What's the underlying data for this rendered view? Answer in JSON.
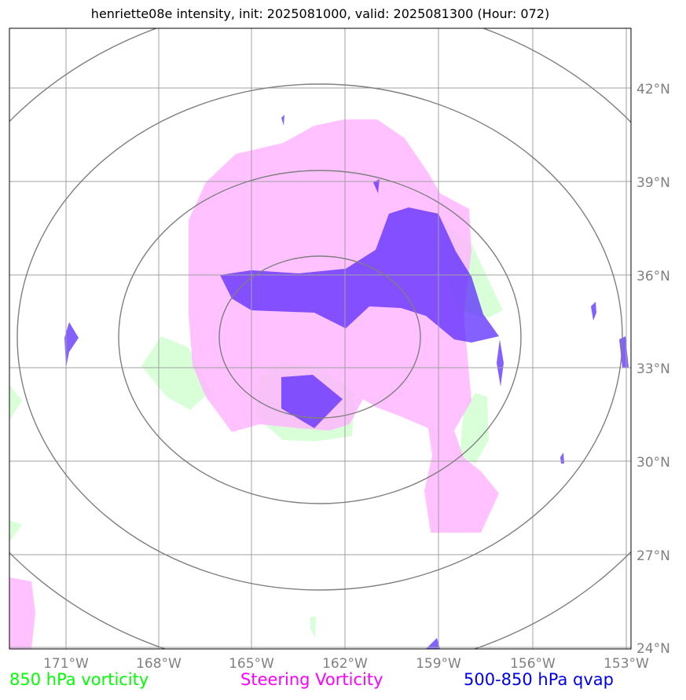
{
  "title": "henriette08e intensity, init: 2025081000, valid: 2025081300 (Hour: 072)",
  "map": {
    "lon_ticks": [
      "171°W",
      "168°W",
      "165°W",
      "162°W",
      "159°W",
      "156°W",
      "153°W"
    ],
    "lat_ticks": [
      "42°N",
      "39°N",
      "36°N",
      "33°N",
      "30°N",
      "27°N",
      "24°N"
    ],
    "lon_range": [
      -173.0,
      -153.0
    ],
    "lat_range": [
      24.0,
      44.0
    ],
    "colors": {
      "vorticity_850": "#ccffcc",
      "steering_vorticity": "#ffb3ff",
      "qvap": "#5522ff",
      "range_rings": "#7f7f7f",
      "grid": "#a0a0a0"
    }
  },
  "legend": {
    "vorticity_850": "850 hPa vorticity",
    "steering_vorticity": "Steering Vorticity",
    "qvap": "500-850 hPa qvap"
  }
}
